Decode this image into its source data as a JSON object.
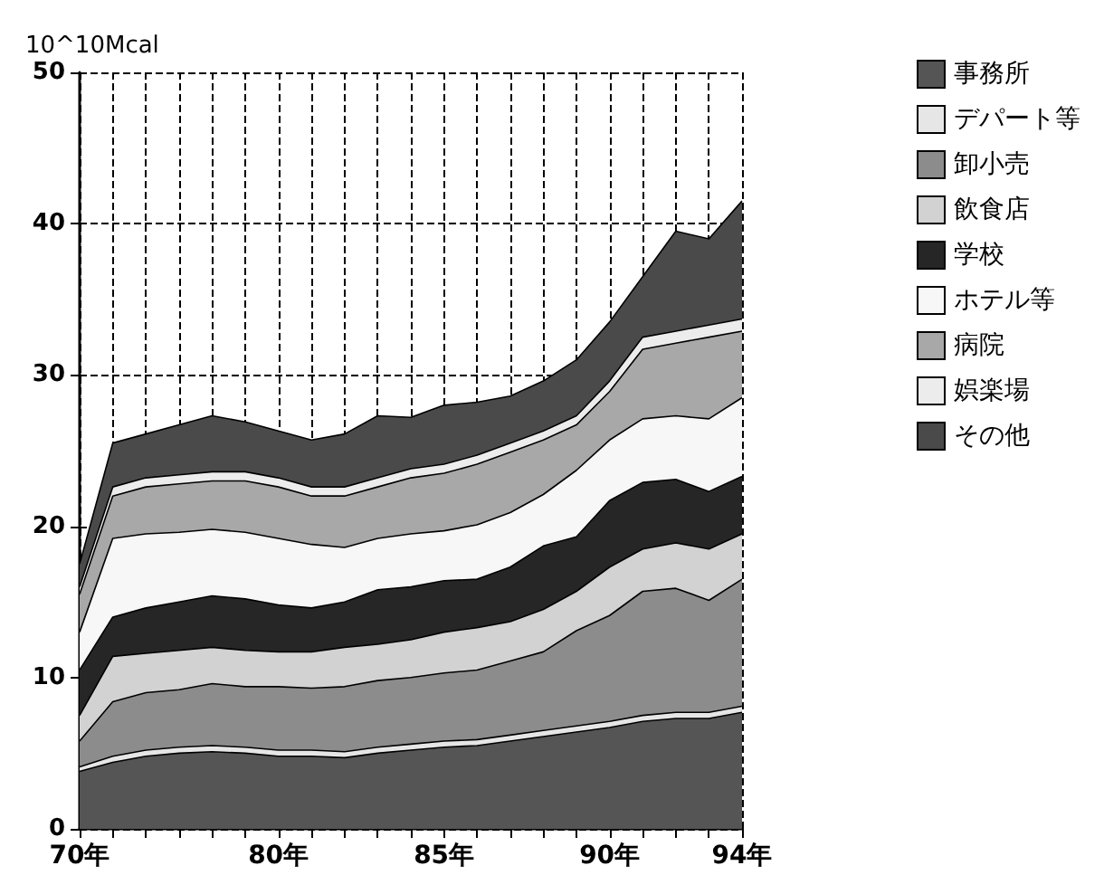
{
  "chart_data": {
    "type": "area",
    "stacked": true,
    "ylabel": "10^10Mcal",
    "categories": [
      "70年",
      null,
      null,
      null,
      null,
      null,
      "80年",
      null,
      null,
      null,
      null,
      "85年",
      null,
      null,
      null,
      null,
      "90年",
      null,
      null,
      null,
      "94年"
    ],
    "ylim": [
      0,
      50
    ],
    "yticks": [
      0,
      10,
      20,
      30,
      40,
      50
    ],
    "grid": true,
    "legend": "right",
    "marker": "none",
    "series": [
      {
        "name": "事務所",
        "color": "#555555",
        "values": [
          3.8,
          4.4,
          4.8,
          5.0,
          5.1,
          5.0,
          4.8,
          4.8,
          4.7,
          5.0,
          5.2,
          5.4,
          5.5,
          5.8,
          6.1,
          6.4,
          6.7,
          7.1,
          7.3,
          7.3,
          7.7
        ]
      },
      {
        "name": "デパート等",
        "color": "#e6e6e6",
        "values": [
          0.3,
          0.4,
          0.4,
          0.4,
          0.4,
          0.4,
          0.4,
          0.4,
          0.4,
          0.4,
          0.4,
          0.4,
          0.4,
          0.4,
          0.4,
          0.4,
          0.4,
          0.4,
          0.4,
          0.4,
          0.4
        ]
      },
      {
        "name": "卸小売",
        "color": "#8c8c8c",
        "values": [
          1.7,
          3.6,
          3.8,
          3.8,
          4.1,
          4.0,
          4.2,
          4.1,
          4.3,
          4.4,
          4.4,
          4.5,
          4.6,
          4.9,
          5.2,
          6.3,
          7.0,
          8.2,
          8.2,
          7.4,
          8.4
        ]
      },
      {
        "name": "飲食店",
        "color": "#d2d2d2",
        "values": [
          1.7,
          3.0,
          2.6,
          2.6,
          2.4,
          2.4,
          2.3,
          2.4,
          2.6,
          2.4,
          2.5,
          2.7,
          2.8,
          2.6,
          2.8,
          2.6,
          3.2,
          2.8,
          3.0,
          3.4,
          3.0
        ]
      },
      {
        "name": "学校",
        "color": "#262626",
        "values": [
          3.0,
          2.6,
          3.0,
          3.2,
          3.4,
          3.4,
          3.1,
          2.9,
          3.0,
          3.6,
          3.5,
          3.4,
          3.2,
          3.6,
          4.2,
          3.6,
          4.4,
          4.4,
          4.2,
          3.8,
          3.8
        ]
      },
      {
        "name": "ホテル等",
        "color": "#f7f7f7",
        "values": [
          2.5,
          5.2,
          4.9,
          4.6,
          4.4,
          4.4,
          4.4,
          4.2,
          3.6,
          3.4,
          3.5,
          3.3,
          3.6,
          3.6,
          3.4,
          4.4,
          4.0,
          4.2,
          4.2,
          4.8,
          5.2
        ]
      },
      {
        "name": "病院",
        "color": "#a8a8a8",
        "values": [
          2.5,
          2.8,
          3.1,
          3.2,
          3.2,
          3.4,
          3.4,
          3.2,
          3.4,
          3.4,
          3.7,
          3.8,
          4.0,
          4.0,
          3.6,
          3.0,
          3.2,
          4.6,
          4.8,
          5.4,
          4.4
        ]
      },
      {
        "name": "娯楽場",
        "color": "#ececec",
        "values": [
          0.5,
          0.6,
          0.6,
          0.6,
          0.6,
          0.6,
          0.6,
          0.6,
          0.6,
          0.6,
          0.6,
          0.6,
          0.6,
          0.6,
          0.6,
          0.6,
          0.7,
          0.8,
          0.8,
          0.8,
          0.8
        ]
      },
      {
        "name": "その他",
        "color": "#4a4a4a",
        "values": [
          1.5,
          2.9,
          2.9,
          3.3,
          3.7,
          3.3,
          3.1,
          3.1,
          3.5,
          4.1,
          3.4,
          3.9,
          3.5,
          3.1,
          3.3,
          3.7,
          3.9,
          4.0,
          6.6,
          5.7,
          7.8
        ]
      }
    ]
  }
}
